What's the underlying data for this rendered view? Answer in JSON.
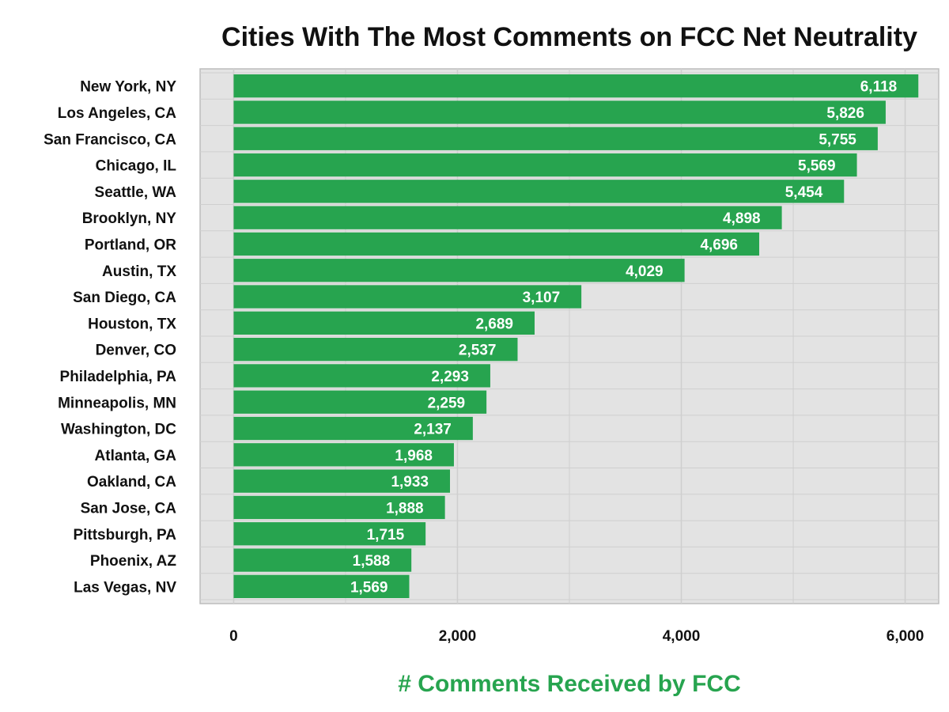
{
  "chart_data": {
    "type": "bar",
    "orientation": "horizontal",
    "title": "Cities With The Most Comments on FCC Net Neutrality",
    "xlabel": "# Comments Received by FCC",
    "ylabel": "",
    "categories": [
      "New York, NY",
      "Los Angeles, CA",
      "San Francisco, CA",
      "Chicago, IL",
      "Seattle, WA",
      "Brooklyn, NY",
      "Portland, OR",
      "Austin, TX",
      "San Diego, CA",
      "Houston, TX",
      "Denver, CO",
      "Philadelphia, PA",
      "Minneapolis, MN",
      "Washington, DC",
      "Atlanta, GA",
      "Oakland, CA",
      "San Jose, CA",
      "Pittsburgh, PA",
      "Phoenix, AZ",
      "Las Vegas, NV"
    ],
    "values": [
      6118,
      5826,
      5755,
      5569,
      5454,
      4898,
      4696,
      4029,
      3107,
      2689,
      2537,
      2293,
      2259,
      2137,
      1968,
      1933,
      1888,
      1715,
      1588,
      1569
    ],
    "value_labels": [
      "6,118",
      "5,826",
      "5,755",
      "5,569",
      "5,454",
      "4,898",
      "4,696",
      "4,029",
      "3,107",
      "2,689",
      "2,537",
      "2,293",
      "2,259",
      "2,137",
      "1,968",
      "1,933",
      "1,888",
      "1,715",
      "1,588",
      "1,569"
    ],
    "xlim": [
      -300,
      6300
    ],
    "xticks": [
      0,
      2000,
      4000,
      6000
    ],
    "xtick_labels": [
      "0",
      "2,000",
      "4,000",
      "6,000"
    ],
    "grid": true,
    "legend": "none"
  },
  "colors": {
    "bar": "#27a44f",
    "panel_background": "#e3e3e3",
    "grid": "#cfcfcf",
    "xlabel": "#27a44f"
  }
}
